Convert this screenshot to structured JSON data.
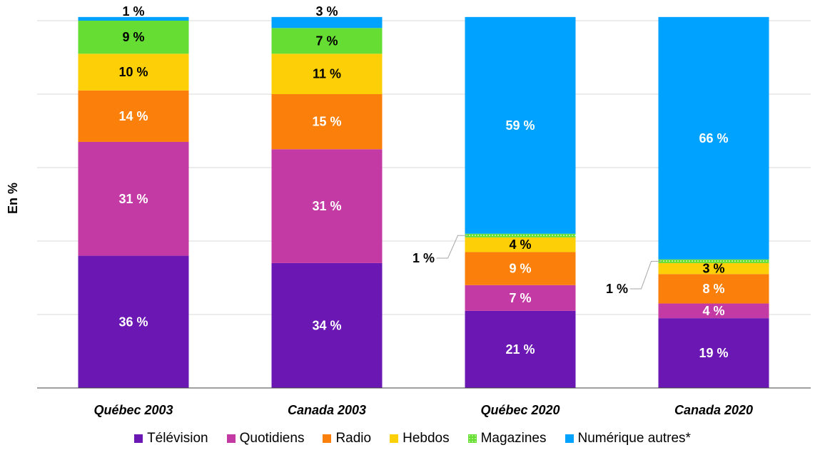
{
  "chart_data": {
    "type": "bar",
    "stacked": true,
    "ylabel": "En %",
    "ylim": [
      0,
      100
    ],
    "grid": true,
    "legend_position": "bottom",
    "categories": [
      "Québec 2003",
      "Canada 2003",
      "Québec 2020",
      "Canada 2020"
    ],
    "series": [
      {
        "name": "Télévision",
        "color": "#6a17b4",
        "label_color": "#ffffff",
        "values": [
          36,
          34,
          21,
          19
        ],
        "labels": [
          "36 %",
          "34 %",
          "21 %",
          "19 %"
        ]
      },
      {
        "name": "Quotidiens",
        "color": "#c43aa5",
        "label_color": "#ffffff",
        "values": [
          31,
          31,
          7,
          4
        ],
        "labels": [
          "31 %",
          "31 %",
          "7 %",
          "4 %"
        ]
      },
      {
        "name": "Radio",
        "color": "#fb7f0b",
        "label_color": "#ffffff",
        "values": [
          14,
          15,
          9,
          8
        ],
        "labels": [
          "14 %",
          "15 %",
          "9 %",
          "8 %"
        ]
      },
      {
        "name": "Hebdos",
        "color": "#fdcf06",
        "label_color": "#000000",
        "values": [
          10,
          11,
          4,
          3
        ],
        "labels": [
          "10 %",
          "11 %",
          "4 %",
          "3 %"
        ]
      },
      {
        "name": "Magazines",
        "color": "#66dd33",
        "label_color": "#000000",
        "values": [
          9,
          7,
          1,
          1
        ],
        "labels": [
          "9 %",
          "7 %",
          "1 %",
          "1 %"
        ],
        "callout": [
          false,
          false,
          true,
          true
        ]
      },
      {
        "name": "Numérique autres*",
        "color": "#00a2ff",
        "label_color": "#ffffff",
        "values": [
          1,
          3,
          59,
          66
        ],
        "labels": [
          "1 %",
          "3 %",
          "59 %",
          "66 %"
        ],
        "label_above": [
          true,
          true,
          false,
          false
        ]
      }
    ]
  }
}
